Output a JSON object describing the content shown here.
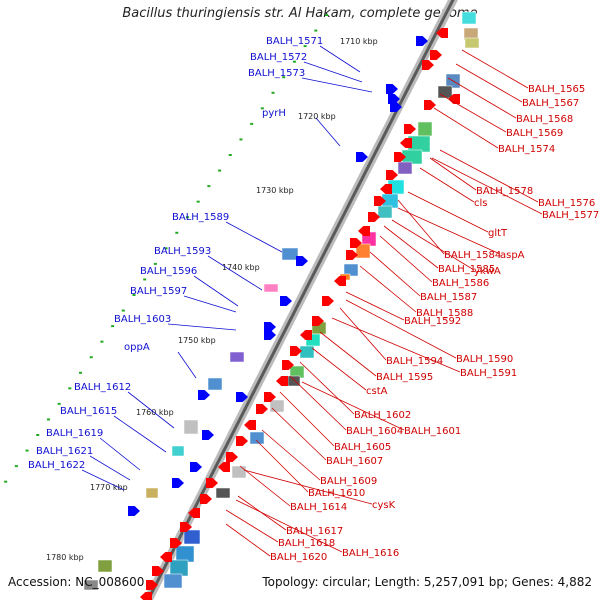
{
  "title": "Bacillus thuringiensis str. Al Hakam, complete genome",
  "footer": {
    "accession": "Accession: NC_008600",
    "topology": "Topology: circular; Length: 5,257,091 bp; Genes: 4,882"
  },
  "ticks": [
    "1710 kbp",
    "1720 kbp",
    "1730 kbp",
    "1740 kbp",
    "1750 kbp",
    "1760 kbp",
    "1770 kbp",
    "1780 kbp"
  ],
  "left_labels": [
    "BALH_1571",
    "BALH_1572",
    "BALH_1573",
    "pyrH",
    "BALH_1589",
    "BALH_1593",
    "BALH_1596",
    "BALH_1597",
    "BALH_1603",
    "oppA",
    "BALH_1612",
    "BALH_1615",
    "BALH_1619",
    "BALH_1621",
    "BALH_1622"
  ],
  "right_labels": [
    "BALH_1565",
    "BALH_1567",
    "BALH_1568",
    "BALH_1569",
    "BALH_1574",
    "BALH_1578",
    "BALH_1576",
    "cls",
    "BALH_1577",
    "gltT",
    "BALH_1584",
    "aspA",
    "ykwA",
    "BALH_1585",
    "BALH_1586",
    "BALH_1587",
    "BALH_1588",
    "BALH_1592",
    "BALH_1590",
    "BALH_1594",
    "BALH_1591",
    "BALH_1595",
    "cstA",
    "BALH_1602",
    "BALH_1604",
    "BALH_1601",
    "BALH_1605",
    "BALH_1607",
    "BALH_1609",
    "BALH_1610",
    "BALH_1614",
    "cysK",
    "BALH_1617",
    "BALH_1618",
    "BALH_1616",
    "BALH_1620"
  ],
  "colors": {
    "backbone": "#888888",
    "left_label": "#1010d0",
    "right_label": "#d00000",
    "forward_gene": "#0000ff",
    "reverse_gene": "#ff0000",
    "tick": "#22aa22"
  }
}
